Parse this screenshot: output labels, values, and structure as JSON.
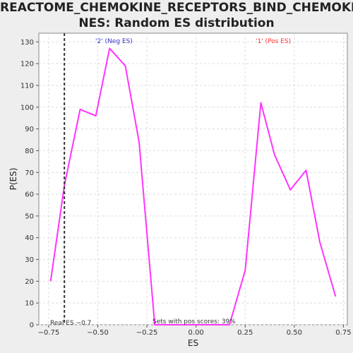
{
  "chart_data": {
    "type": "line",
    "title_line1": "REACTOME_CHEMOKINE_RECEPTORS_BIND_CHEMOKI",
    "title_line2": "NES: Random ES distribution",
    "xlabel": "ES",
    "ylabel": "P(ES)",
    "xlim": [
      -0.8,
      0.77
    ],
    "ylim": [
      0,
      134
    ],
    "xticks": [
      -0.75,
      -0.5,
      -0.25,
      0.0,
      0.25,
      0.5,
      0.75
    ],
    "xtick_labels": [
      "−0.75",
      "−0.50",
      "−0.25",
      "0.00",
      "0.25",
      "0.50",
      "0.75"
    ],
    "yticks": [
      0,
      10,
      20,
      30,
      40,
      50,
      60,
      70,
      80,
      90,
      100,
      110,
      120,
      130
    ],
    "grid": true,
    "series": [
      {
        "color": "#ff33ff",
        "x": [
          -0.74,
          -0.67,
          -0.59,
          -0.51,
          -0.44,
          -0.36,
          -0.29,
          -0.21,
          -0.14,
          -0.06,
          0.02,
          0.1,
          0.17,
          0.25,
          0.33,
          0.4,
          0.48,
          0.56,
          0.63,
          0.71
        ],
        "y": [
          20,
          64,
          99,
          96,
          127,
          119,
          84,
          0,
          0,
          0,
          0,
          0,
          0,
          25,
          102,
          78,
          62,
          71,
          38,
          13
        ]
      }
    ],
    "real_es": -0.67,
    "real_es_label": "Real ES −0.7",
    "neg_label": "'2' (Neg ES)",
    "pos_label": "'1' (Pos ES)",
    "neg_color": "#3333cc",
    "pos_color": "#ff3333",
    "sets_label": "Sets with pos scores: 39%"
  }
}
